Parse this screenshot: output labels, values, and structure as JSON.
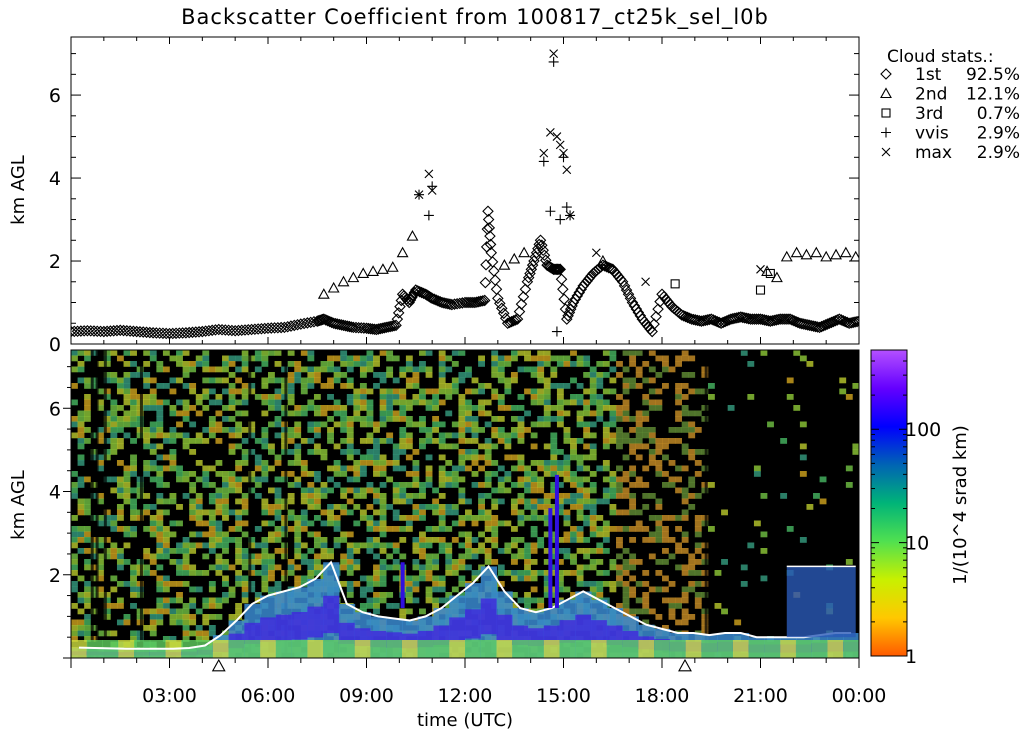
{
  "page_title": "Backscatter Coefficient from 100817_ct25k_sel_l0b",
  "chart_data": [
    {
      "name": "cloud-stats-panel",
      "type": "scatter",
      "ylabel": "km AGL",
      "ylim": [
        0,
        7.4
      ],
      "xlim_hours": [
        0,
        24
      ],
      "yticks": [
        "0",
        "2",
        "4",
        "6"
      ],
      "legend": {
        "title": "Cloud stats.:",
        "placement": "right",
        "entries": [
          {
            "marker": "diamond",
            "label": "1st",
            "value": "92.5%"
          },
          {
            "marker": "triangle",
            "label": "2nd",
            "value": "12.1%"
          },
          {
            "marker": "square",
            "label": "3rd",
            "value": "0.7%"
          },
          {
            "marker": "plus",
            "label": "vvis",
            "value": "2.9%"
          },
          {
            "marker": "cross",
            "label": "max",
            "value": "2.9%"
          }
        ]
      },
      "series": [
        {
          "name": "1st",
          "marker": "diamond",
          "x": [
            0.0,
            0.5,
            1.0,
            1.5,
            2.0,
            2.5,
            3.0,
            3.5,
            4.0,
            4.5,
            5.0,
            5.5,
            6.0,
            6.5,
            7.0,
            7.5,
            7.7,
            8.0,
            8.3,
            8.6,
            9.0,
            9.3,
            9.6,
            9.9,
            10.1,
            10.3,
            10.5,
            10.8,
            11.0,
            11.3,
            11.6,
            12.0,
            12.3,
            12.6,
            12.7,
            12.8,
            13.0,
            13.3,
            13.6,
            13.9,
            14.1,
            14.3,
            14.5,
            14.7,
            14.9,
            15.1,
            15.3,
            15.6,
            15.9,
            16.2,
            16.5,
            16.8,
            17.1,
            17.4,
            17.7,
            18.0,
            18.3,
            18.6,
            18.9,
            19.2,
            19.5,
            19.8,
            20.1,
            20.4,
            20.7,
            21.0,
            21.3,
            21.6,
            21.9,
            22.2,
            22.5,
            22.8,
            23.1,
            23.4,
            23.7,
            24.0
          ],
          "y": [
            0.3,
            0.32,
            0.3,
            0.33,
            0.3,
            0.27,
            0.25,
            0.27,
            0.3,
            0.35,
            0.32,
            0.35,
            0.38,
            0.4,
            0.48,
            0.55,
            0.6,
            0.5,
            0.45,
            0.4,
            0.38,
            0.35,
            0.4,
            0.45,
            1.2,
            1.0,
            1.3,
            1.2,
            1.1,
            1.0,
            0.95,
            1.0,
            1.0,
            1.05,
            3.2,
            2.2,
            1.1,
            0.5,
            0.6,
            1.5,
            2.0,
            2.5,
            1.9,
            1.8,
            1.8,
            0.6,
            1.0,
            1.4,
            1.7,
            1.9,
            1.8,
            1.5,
            1.0,
            0.6,
            0.3,
            1.2,
            0.9,
            0.7,
            0.6,
            0.55,
            0.6,
            0.5,
            0.6,
            0.65,
            0.6,
            0.6,
            0.55,
            0.6,
            0.6,
            0.5,
            0.45,
            0.4,
            0.5,
            0.6,
            0.5,
            0.55
          ]
        },
        {
          "name": "2nd",
          "marker": "triangle",
          "x": [
            7.7,
            8.0,
            8.3,
            8.6,
            8.9,
            9.2,
            9.5,
            9.8,
            10.1,
            10.4,
            13.2,
            13.5,
            13.8,
            16.2,
            21.2,
            21.5,
            21.8,
            22.1,
            22.4,
            22.7,
            23.0,
            23.3,
            23.6,
            23.9
          ],
          "y": [
            1.2,
            1.35,
            1.5,
            1.6,
            1.7,
            1.75,
            1.8,
            1.85,
            2.2,
            2.6,
            1.9,
            2.05,
            2.2,
            2.0,
            1.75,
            1.6,
            2.1,
            2.2,
            2.15,
            2.2,
            2.1,
            2.15,
            2.2,
            2.1
          ]
        },
        {
          "name": "3rd",
          "marker": "square",
          "x": [
            18.4,
            21.0,
            21.3
          ],
          "y": [
            1.45,
            1.3,
            1.7
          ]
        },
        {
          "name": "vvis",
          "marker": "plus",
          "x": [
            10.6,
            10.9,
            11.0,
            14.4,
            14.6,
            14.7,
            14.9,
            15.0,
            15.1,
            15.2,
            14.8
          ],
          "y": [
            3.6,
            3.1,
            3.8,
            4.4,
            3.2,
            6.8,
            3.0,
            4.5,
            3.3,
            3.1,
            0.3
          ]
        },
        {
          "name": "max",
          "marker": "cross",
          "x": [
            10.6,
            10.9,
            11.0,
            14.4,
            14.6,
            14.7,
            14.8,
            14.9,
            15.0,
            15.1,
            15.2,
            16.0,
            17.5,
            21.0
          ],
          "y": [
            3.6,
            4.1,
            3.7,
            4.6,
            5.1,
            7.0,
            5.0,
            4.8,
            4.6,
            4.2,
            3.1,
            2.2,
            1.5,
            1.8
          ]
        }
      ]
    },
    {
      "name": "backscatter-panel",
      "type": "heatmap",
      "ylabel": "km AGL",
      "xlabel": "time (UTC)",
      "ylim": [
        0,
        7.4
      ],
      "xticks": [
        "03:00",
        "06:00",
        "09:00",
        "12:00",
        "15:00",
        "18:00",
        "21:00",
        "00:00"
      ],
      "yticks": [
        "2",
        "4",
        "6"
      ],
      "cloud_base_km": [
        0.25,
        0.24,
        0.23,
        0.22,
        0.22,
        0.22,
        0.22,
        0.24,
        0.3,
        0.55,
        0.9,
        1.3,
        1.5,
        1.6,
        1.7,
        1.9,
        2.3,
        1.3,
        1.1,
        1.0,
        0.95,
        0.9,
        1.0,
        1.2,
        1.5,
        1.8,
        2.2,
        1.6,
        1.2,
        1.1,
        1.2,
        1.4,
        1.6,
        1.4,
        1.2,
        1.0,
        0.8,
        0.7,
        0.6,
        0.6,
        0.55,
        0.6,
        0.6,
        0.5,
        0.5,
        0.5,
        0.5,
        0.55,
        0.6,
        0.6
      ],
      "upper_layer": {
        "start_h": 21.8,
        "end_h": 23.9,
        "top_km": 2.2,
        "bottom_km": 0.5
      },
      "colorbar": {
        "label": "1/(10^4 srad km)",
        "tick_labels": [
          "1",
          "10",
          "100"
        ],
        "tick_values": [
          1,
          10,
          100
        ],
        "range": [
          1,
          500
        ],
        "colors": [
          "#ff5a00",
          "#ffc800",
          "#c8f000",
          "#50e050",
          "#00b478",
          "#0064b4",
          "#0000ff",
          "#6400ff",
          "#b450ff"
        ]
      },
      "event_markers_h": [
        4.5,
        18.7
      ]
    }
  ]
}
